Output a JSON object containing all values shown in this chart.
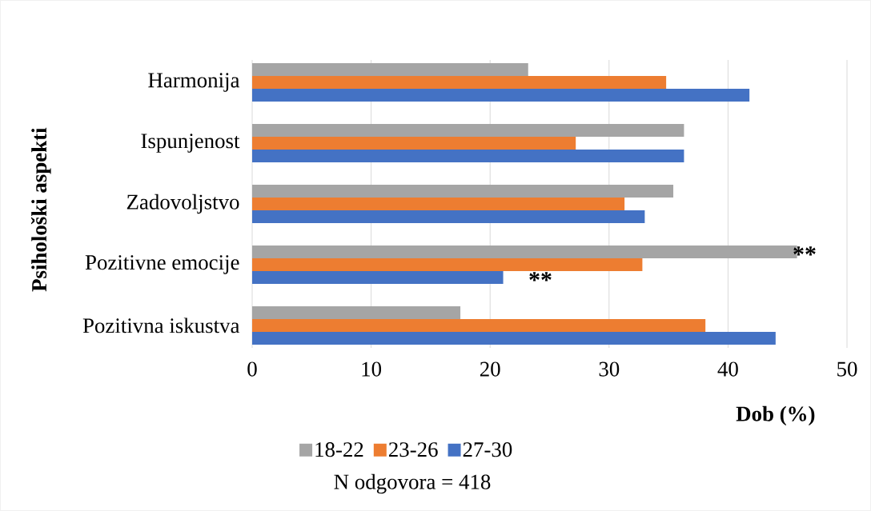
{
  "chart_data": {
    "type": "bar",
    "orientation": "horizontal",
    "categories": [
      "Harmonija",
      "Ispunjenost",
      "Zadovoljstvo",
      "Pozitivne emocije",
      "Pozitivna iskustva"
    ],
    "series": [
      {
        "name": "18-22",
        "color": "#a5a5a5",
        "values": [
          23.2,
          36.3,
          35.4,
          45.8,
          17.5
        ]
      },
      {
        "name": "23-26",
        "color": "#ed7d31",
        "values": [
          34.8,
          27.2,
          31.3,
          32.8,
          38.1
        ]
      },
      {
        "name": "27-30",
        "color": "#4472c4",
        "values": [
          41.8,
          36.3,
          33.0,
          21.1,
          44.0
        ]
      }
    ],
    "xlim": [
      0,
      50
    ],
    "xticks": [
      0,
      10,
      20,
      30,
      40,
      50
    ],
    "xlabel": "Dob (%)",
    "ylabel": "Psihološki aspekti",
    "grid": "x",
    "legend": "bottom",
    "annotations": [
      "**",
      "**",
      "N odgovora = 418"
    ]
  }
}
